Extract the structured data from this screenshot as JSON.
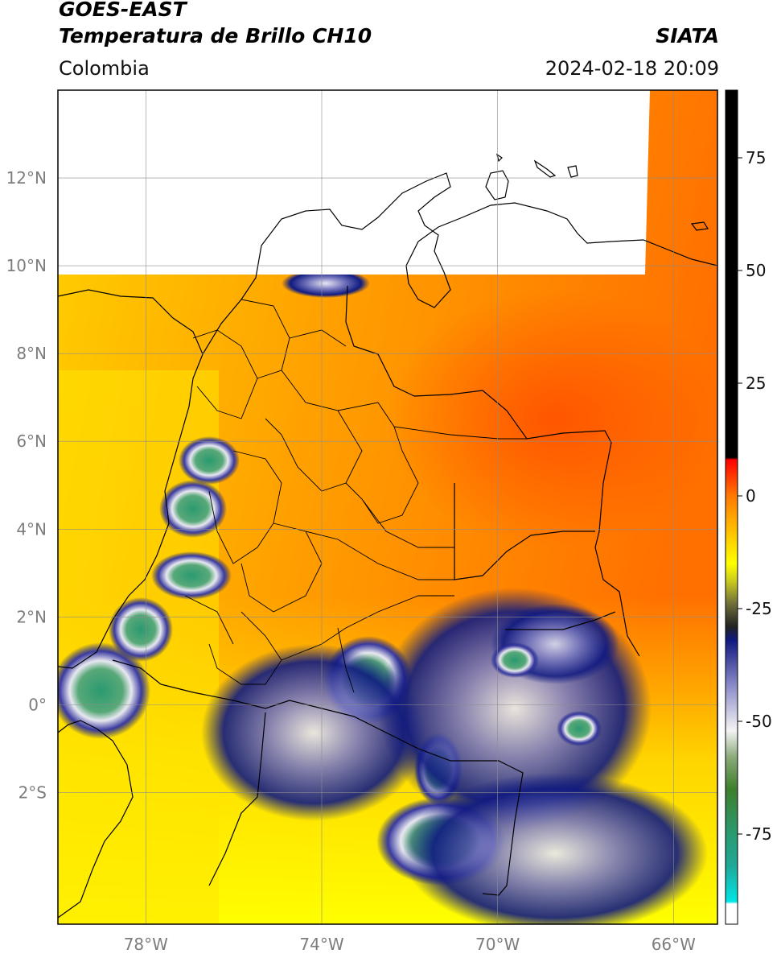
{
  "header": {
    "satellite": "GOES-EAST",
    "product": "Temperatura de Brillo CH10",
    "region": "Colombia",
    "brand": "SIATA",
    "timestamp": "2024-02-18 20:09"
  },
  "map": {
    "extent": {
      "lon_min": -80,
      "lon_max": -65,
      "lat_min": -5,
      "lat_max": 14
    },
    "lon_ticks": [
      {
        "value": -78,
        "label": "78°W"
      },
      {
        "value": -74,
        "label": "74°W"
      },
      {
        "value": -70,
        "label": "70°W"
      },
      {
        "value": -66,
        "label": "66°W"
      }
    ],
    "lat_ticks": [
      {
        "value": 12,
        "label": "12°N"
      },
      {
        "value": 10,
        "label": "10°N"
      },
      {
        "value": 8,
        "label": "8°N"
      },
      {
        "value": 6,
        "label": "6°N"
      },
      {
        "value": 4,
        "label": "4°N"
      },
      {
        "value": 2,
        "label": "2°N"
      },
      {
        "value": 0,
        "label": "0°"
      },
      {
        "value": -2,
        "label": "2°S"
      }
    ],
    "grid": true,
    "no_data_region": {
      "lat_above": 9.8,
      "lon_west_of": -66.7
    }
  },
  "colorbar": {
    "min": -95,
    "max": 90,
    "ticks": [
      {
        "value": 75,
        "label": "75"
      },
      {
        "value": 50,
        "label": "50"
      },
      {
        "value": 25,
        "label": "25"
      },
      {
        "value": 0,
        "label": "0"
      },
      {
        "value": -25,
        "label": "-25"
      },
      {
        "value": -50,
        "label": "-50"
      },
      {
        "value": -75,
        "label": "-75"
      }
    ],
    "stops": [
      {
        "value": -95,
        "color": "#ffffff"
      },
      {
        "value": -90.5,
        "color": "#ffffff"
      },
      {
        "value": -90,
        "color": "#00e6e6"
      },
      {
        "value": -82,
        "color": "#1fa898"
      },
      {
        "value": -75,
        "color": "#2a9a70"
      },
      {
        "value": -65,
        "color": "#3e7f2c"
      },
      {
        "value": -58,
        "color": "#8aaa7a"
      },
      {
        "value": -52,
        "color": "#f4f4f4"
      },
      {
        "value": -42,
        "color": "#8a8ac8"
      },
      {
        "value": -32,
        "color": "#101a80"
      },
      {
        "value": -29,
        "color": "#222222"
      },
      {
        "value": -24,
        "color": "#6e6e3a"
      },
      {
        "value": -19,
        "color": "#c8c820"
      },
      {
        "value": -15,
        "color": "#ffff00"
      },
      {
        "value": -8,
        "color": "#ffc200"
      },
      {
        "value": 0,
        "color": "#ff7a00"
      },
      {
        "value": 8,
        "color": "#ff0000"
      },
      {
        "value": 8.5,
        "color": "#000000"
      },
      {
        "value": 90,
        "color": "#000000"
      }
    ]
  }
}
